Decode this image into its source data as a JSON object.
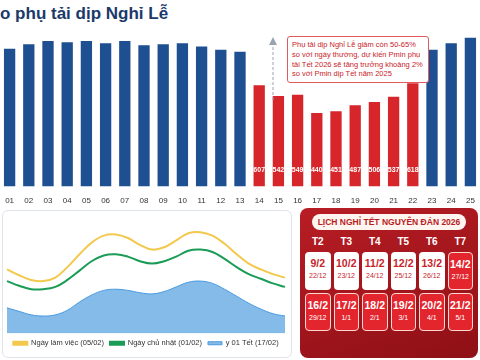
{
  "title": "o phụ tải dịp Nghỉ Lễ",
  "chart_data": [
    {
      "type": "bar",
      "categories": [
        "01",
        "02",
        "03",
        "04",
        "05",
        "06",
        "07",
        "08",
        "09",
        "10",
        "11",
        "12",
        "13",
        "14",
        "15",
        "16",
        "17",
        "18",
        "19",
        "20",
        "21",
        "22",
        "23",
        "24",
        "25"
      ],
      "values": [
        826,
        852,
        872,
        865,
        872,
        859,
        872,
        846,
        852,
        859,
        839,
        820,
        807,
        607,
        542,
        549,
        440,
        451,
        487,
        506,
        537,
        618,
        820,
        859,
        891
      ],
      "value_labels": [
        null,
        null,
        null,
        null,
        null,
        null,
        null,
        null,
        null,
        null,
        null,
        null,
        null,
        "607",
        "542",
        "549",
        "440",
        "451",
        "487",
        "506",
        "537",
        "618",
        null,
        null,
        null
      ],
      "colors": [
        "#1d4f91",
        "#1d4f91",
        "#1d4f91",
        "#1d4f91",
        "#1d4f91",
        "#1d4f91",
        "#1d4f91",
        "#1d4f91",
        "#1d4f91",
        "#1d4f91",
        "#1d4f91",
        "#1d4f91",
        "#1d4f91",
        "#d7262b",
        "#d7262b",
        "#d7262b",
        "#d7262b",
        "#d7262b",
        "#d7262b",
        "#d7262b",
        "#d7262b",
        "#d7262b",
        "#1d4f91",
        "#1d4f91",
        "#1d4f91"
      ],
      "ylim": [
        0,
        950
      ],
      "grid": false,
      "data_labels": true,
      "tick_labels": "x",
      "annotations": [
        "Phụ tải dịp Nghỉ Lễ giảm còn 50-65% so với ngày thường, dự kiến Pmin phụ tải Tết 2026 sẽ tăng trưởng khoảng 2% so với Pmin dịp Tết năm 2025"
      ]
    },
    {
      "type": "line",
      "categories": [
        null,
        null,
        null,
        null,
        null,
        null,
        null,
        null,
        null,
        null,
        null,
        null,
        null,
        null,
        null,
        null,
        null,
        null,
        null,
        null,
        null,
        null,
        null,
        null
      ],
      "series": [
        {
          "name": "y 01 Tết (17/02)",
          "type": "area",
          "color": "#4a9ae0",
          "values": [
            22,
            19,
            16,
            15,
            16,
            20,
            27,
            33,
            37,
            38,
            37,
            35,
            34,
            36,
            40,
            44,
            45,
            43,
            38,
            32,
            26,
            21,
            17,
            15
          ]
        },
        {
          "name": "Ngày làm việc (05/02)",
          "type": "line",
          "color": "#f2c94c",
          "values": [
            55,
            50,
            46,
            45,
            48,
            57,
            68,
            78,
            84,
            85,
            82,
            76,
            72,
            74,
            80,
            86,
            87,
            84,
            77,
            68,
            60,
            55,
            51,
            48
          ]
        },
        {
          "name": "Ngày chủ nhật (01/02)",
          "type": "line",
          "color": "#1a9c57",
          "values": [
            45,
            41,
            38,
            38,
            40,
            46,
            54,
            62,
            67,
            68,
            66,
            62,
            60,
            62,
            66,
            71,
            72,
            70,
            64,
            57,
            51,
            47,
            43,
            40
          ]
        }
      ],
      "ylim": [
        0,
        100
      ],
      "grid": false,
      "tick_labels": false,
      "legend": "bottom"
    }
  ],
  "calendar": {
    "title": "LỊCH NGHỈ TẾT NGUYÊN ĐÁN 2026",
    "days": [
      "T2",
      "T3",
      "T4",
      "T5",
      "T6",
      "T7"
    ],
    "rows": [
      [
        {
          "date": "9/2",
          "lunar": "22/12",
          "holiday": false
        },
        {
          "date": "10/2",
          "lunar": "23/12",
          "holiday": false
        },
        {
          "date": "11/2",
          "lunar": "24/12",
          "holiday": false
        },
        {
          "date": "12/2",
          "lunar": "25/12",
          "holiday": false
        },
        {
          "date": "13/2",
          "lunar": "26/12",
          "holiday": false
        },
        {
          "date": "14/2",
          "lunar": "27/12",
          "holiday": true
        }
      ],
      [
        {
          "date": "16/2",
          "lunar": "29/12",
          "holiday": true
        },
        {
          "date": "17/2",
          "lunar": "1/1",
          "holiday": true
        },
        {
          "date": "18/2",
          "lunar": "2/1",
          "holiday": true
        },
        {
          "date": "19/2",
          "lunar": "3/1",
          "holiday": true
        },
        {
          "date": "20/2",
          "lunar": "4/1",
          "holiday": true
        },
        {
          "date": "21/2",
          "lunar": "5/1",
          "holiday": true
        }
      ]
    ]
  }
}
